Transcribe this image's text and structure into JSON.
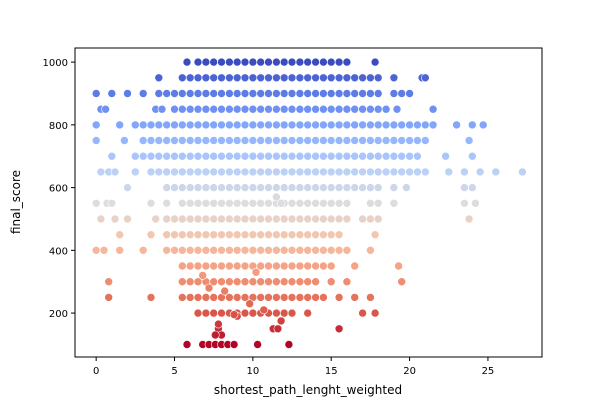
{
  "chart_data": {
    "type": "scatter",
    "title": "",
    "xlabel": "shortest_path_lenght_weighted",
    "ylabel": "final_score",
    "xlim": [
      -1.35,
      28.45
    ],
    "ylim": [
      60,
      1045
    ],
    "xticks": [
      0,
      5,
      10,
      15,
      20,
      25
    ],
    "yticks": [
      200,
      400,
      600,
      800,
      1000
    ],
    "xtick_labels": [
      "0",
      "5",
      "10",
      "15",
      "20",
      "25"
    ],
    "ytick_labels": [
      "200",
      "400",
      "600",
      "800",
      "1000"
    ],
    "grid": false,
    "legend": "none",
    "colormap": "coolwarm (reversed by final_score: red = low, blue = high)",
    "colors": {
      "high": "#3b4cc0",
      "mid": "#dddddd",
      "low": "#b40426"
    },
    "score_levels": [
      {
        "y": 1000,
        "x": [
          5.8,
          6.5,
          7.0,
          7.5,
          8.0,
          8.5,
          9.0,
          9.5,
          10.0,
          10.5,
          11.0,
          11.5,
          12.0,
          12.5,
          13.0,
          13.5,
          14.0,
          14.5,
          15.0,
          15.5,
          16.0,
          17.8
        ]
      },
      {
        "y": 950,
        "x": [
          4.0,
          5.5,
          6.0,
          6.5,
          7.0,
          7.5,
          8.0,
          8.5,
          9.0,
          9.5,
          10.0,
          10.5,
          11.0,
          11.5,
          12.0,
          12.5,
          13.0,
          13.5,
          14.0,
          14.5,
          15.0,
          15.5,
          16.0,
          16.5,
          17.0,
          17.5,
          18.0,
          19.0,
          20.8,
          21.0
        ]
      },
      {
        "y": 900,
        "x": [
          0.0,
          1.0,
          2.0,
          3.0,
          4.0,
          4.5,
          5.0,
          5.5,
          6.0,
          6.5,
          7.0,
          7.5,
          8.0,
          8.5,
          9.0,
          9.5,
          10.0,
          10.5,
          11.0,
          11.5,
          12.0,
          12.5,
          13.0,
          13.5,
          14.0,
          14.5,
          15.0,
          15.5,
          16.0,
          16.5,
          17.0,
          17.5,
          18.0,
          19.0,
          19.5,
          20.0
        ]
      },
      {
        "y": 850,
        "x": [
          0.3,
          0.6,
          3.8,
          4.2,
          5.0,
          5.5,
          6.0,
          6.5,
          7.0,
          7.5,
          8.0,
          8.5,
          9.0,
          9.5,
          10.0,
          10.5,
          11.0,
          11.5,
          12.0,
          12.5,
          13.0,
          13.5,
          14.0,
          14.5,
          15.0,
          15.5,
          16.0,
          16.5,
          17.0,
          17.5,
          18.0,
          18.5,
          19.2,
          21.5
        ]
      },
      {
        "y": 800,
        "x": [
          0.0,
          1.5,
          2.5,
          3.0,
          3.5,
          4.0,
          4.5,
          5.0,
          5.5,
          6.0,
          6.5,
          7.0,
          7.5,
          8.0,
          8.5,
          9.0,
          9.5,
          10.0,
          10.5,
          11.0,
          11.5,
          12.0,
          12.5,
          13.0,
          13.5,
          14.0,
          14.5,
          15.0,
          15.5,
          16.0,
          16.5,
          17.0,
          17.5,
          18.0,
          18.5,
          19.0,
          19.5,
          20.0,
          20.5,
          21.0,
          21.5,
          23.0,
          24.0,
          24.7
        ]
      },
      {
        "y": 750,
        "x": [
          0.0,
          1.8,
          3.0,
          3.5,
          4.0,
          4.5,
          5.0,
          5.5,
          6.0,
          6.5,
          7.0,
          7.5,
          8.0,
          8.5,
          9.0,
          9.5,
          10.0,
          10.5,
          11.0,
          11.5,
          12.0,
          12.5,
          13.0,
          13.5,
          14.0,
          14.5,
          15.0,
          15.5,
          16.0,
          16.5,
          17.0,
          17.5,
          18.0,
          18.5,
          19.0,
          19.5,
          20.0,
          20.5,
          21.0,
          23.8
        ]
      },
      {
        "y": 700,
        "x": [
          1.0,
          2.5,
          3.0,
          3.5,
          4.0,
          4.5,
          5.0,
          5.5,
          6.0,
          6.5,
          7.0,
          7.5,
          8.0,
          8.5,
          9.0,
          9.5,
          10.0,
          10.5,
          11.0,
          11.5,
          12.0,
          12.5,
          13.0,
          13.5,
          14.0,
          14.5,
          15.0,
          15.5,
          16.0,
          16.5,
          17.0,
          17.5,
          18.0,
          18.5,
          19.0,
          19.5,
          20.0,
          20.5,
          22.3,
          24.0
        ]
      },
      {
        "y": 650,
        "x": [
          0.3,
          0.8,
          1.2,
          2.5,
          3.5,
          4.0,
          4.5,
          5.0,
          5.5,
          6.0,
          6.5,
          7.0,
          7.5,
          8.0,
          8.5,
          9.0,
          9.5,
          10.0,
          10.5,
          11.0,
          11.5,
          12.0,
          12.5,
          13.0,
          13.5,
          14.0,
          14.5,
          15.0,
          15.5,
          16.0,
          16.5,
          17.0,
          17.5,
          18.0,
          18.5,
          19.0,
          19.5,
          20.0,
          20.5,
          21.0,
          22.5,
          23.5,
          24.5,
          25.5,
          27.2
        ]
      },
      {
        "y": 600,
        "x": [
          2.0,
          4.5,
          5.0,
          5.5,
          6.0,
          6.5,
          7.0,
          7.5,
          8.0,
          8.5,
          9.0,
          9.5,
          10.0,
          10.5,
          11.0,
          11.5,
          12.0,
          12.5,
          13.0,
          13.5,
          14.0,
          14.5,
          15.0,
          15.5,
          16.0,
          16.5,
          17.0,
          17.5,
          18.0,
          19.0,
          19.8,
          23.5,
          24.0
        ]
      },
      {
        "y": 550,
        "x": [
          0.0,
          0.7,
          1.0,
          3.5,
          4.5,
          5.5,
          6.0,
          6.5,
          7.0,
          7.5,
          8.0,
          8.5,
          9.0,
          9.5,
          10.0,
          10.5,
          11.0,
          11.5,
          12.0,
          12.5,
          13.0,
          13.5,
          14.0,
          14.5,
          15.0,
          15.5,
          16.0,
          17.5,
          18.0,
          19.0,
          23.5,
          24.2
        ]
      },
      {
        "y": 500,
        "x": [
          0.3,
          1.2,
          2.0,
          3.8,
          4.5,
          5.0,
          5.5,
          6.0,
          6.5,
          7.0,
          7.5,
          8.0,
          8.5,
          9.0,
          9.5,
          10.0,
          10.5,
          11.0,
          11.5,
          12.0,
          12.5,
          13.0,
          13.5,
          14.0,
          14.5,
          15.0,
          15.5,
          16.0,
          17.0,
          17.5,
          18.0,
          23.8
        ]
      },
      {
        "y": 450,
        "x": [
          1.5,
          3.5,
          4.5,
          5.0,
          5.5,
          6.0,
          6.5,
          7.0,
          7.5,
          8.0,
          8.5,
          9.0,
          9.5,
          10.0,
          10.5,
          11.0,
          11.5,
          12.0,
          12.5,
          13.0,
          13.5,
          14.0,
          14.5,
          15.0,
          15.5,
          17.8
        ]
      },
      {
        "y": 400,
        "x": [
          0.0,
          0.5,
          1.5,
          3.0,
          4.5,
          5.0,
          5.5,
          6.0,
          6.5,
          7.0,
          7.5,
          8.0,
          8.5,
          9.0,
          9.5,
          10.0,
          10.5,
          11.0,
          11.5,
          12.0,
          12.5,
          13.0,
          13.5,
          14.0,
          14.5,
          15.0,
          15.5,
          16.0,
          17.5
        ]
      },
      {
        "y": 350,
        "x": [
          5.5,
          6.0,
          6.5,
          7.0,
          7.5,
          8.0,
          8.5,
          9.0,
          9.5,
          10.0,
          10.5,
          11.0,
          11.5,
          12.0,
          12.5,
          13.0,
          13.5,
          14.0,
          14.5,
          15.0,
          16.5,
          19.3
        ]
      },
      {
        "y": 300,
        "x": [
          0.8,
          5.5,
          6.0,
          6.5,
          7.0,
          7.5,
          8.0,
          8.5,
          9.0,
          9.5,
          10.0,
          10.5,
          11.0,
          11.5,
          12.0,
          12.5,
          13.0,
          13.5,
          14.0,
          15.0,
          16.0,
          19.5
        ]
      },
      {
        "y": 250,
        "x": [
          0.8,
          3.5,
          5.5,
          6.0,
          6.5,
          7.0,
          7.5,
          8.0,
          8.5,
          9.0,
          9.5,
          10.0,
          10.5,
          11.0,
          11.5,
          12.0,
          12.5,
          13.0,
          13.5,
          14.0,
          14.5,
          15.5,
          16.5,
          17.5
        ]
      },
      {
        "y": 200,
        "x": [
          6.5,
          7.0,
          7.5,
          8.0,
          8.5,
          9.0,
          9.5,
          10.0,
          10.5,
          11.0,
          11.5,
          12.0,
          12.5,
          13.5,
          17.0,
          17.8
        ]
      },
      {
        "y": 150,
        "x": [
          7.8,
          11.3,
          11.6,
          15.5
        ]
      },
      {
        "y": 100,
        "x": [
          5.8,
          6.8,
          7.2,
          7.6,
          8.0,
          8.4,
          8.8,
          10.3,
          12.3
        ]
      }
    ],
    "extra_points": [
      {
        "x": 7.8,
        "y": 165
      },
      {
        "x": 8.0,
        "y": 130
      },
      {
        "x": 7.6,
        "y": 130
      },
      {
        "x": 9.0,
        "y": 190
      },
      {
        "x": 8.8,
        "y": 195
      },
      {
        "x": 11.8,
        "y": 175
      },
      {
        "x": 6.8,
        "y": 320
      },
      {
        "x": 7.2,
        "y": 280
      },
      {
        "x": 8.2,
        "y": 270
      },
      {
        "x": 9.8,
        "y": 230
      },
      {
        "x": 10.2,
        "y": 330
      },
      {
        "x": 10.7,
        "y": 210
      },
      {
        "x": 11.8,
        "y": 550
      },
      {
        "x": 11.5,
        "y": 570
      }
    ]
  }
}
